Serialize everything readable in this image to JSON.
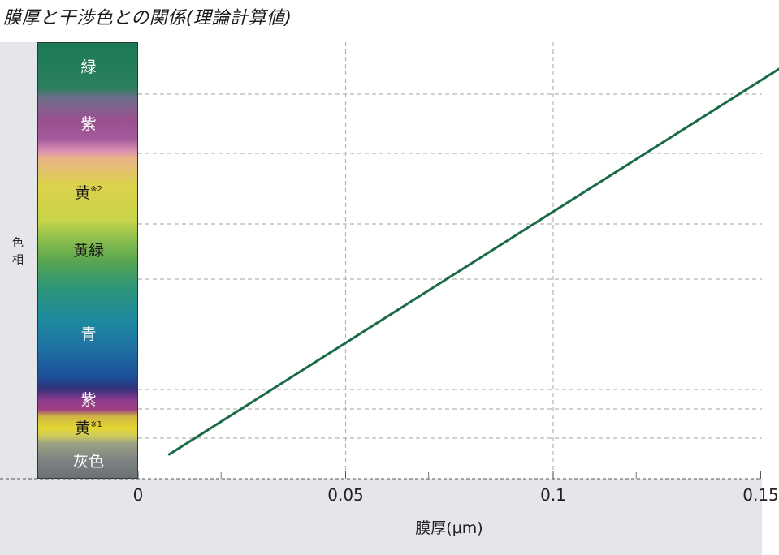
{
  "title": "膜厚と干渉色との関係(理論計算値)",
  "chart_data": {
    "type": "line",
    "title": "膜厚と干渉色との関係(理論計算値)",
    "xlabel": "膜厚(μm)",
    "ylabel": "色相",
    "xlim": [
      0,
      0.15
    ],
    "xticks": [
      {
        "value": 0,
        "label": "0"
      },
      {
        "value": 0.05,
        "label": "0.05"
      },
      {
        "value": 0.1,
        "label": "0.1"
      },
      {
        "value": 0.15,
        "label": "0.15"
      }
    ],
    "minor_xticks": [
      0.02,
      0.07,
      0.12
    ],
    "hue_bands": [
      {
        "label": "緑",
        "note": ""
      },
      {
        "label": "紫",
        "note": ""
      },
      {
        "label": "黄",
        "note": "※2"
      },
      {
        "label": "黄緑",
        "note": ""
      },
      {
        "label": "青",
        "note": ""
      },
      {
        "label": "紫",
        "note": ""
      },
      {
        "label": "黄",
        "note": "※1"
      },
      {
        "label": "灰色",
        "note": ""
      }
    ],
    "series": [
      {
        "x": [
          0.0075,
          0.155
        ],
        "y_hue": [
          "灰色",
          "緑"
        ],
        "color": "#1a6b45"
      }
    ],
    "grid": true,
    "colors": {
      "line": "#1a6b45",
      "grid": "#b3b3b3",
      "frame": "#e4e6ea"
    }
  }
}
